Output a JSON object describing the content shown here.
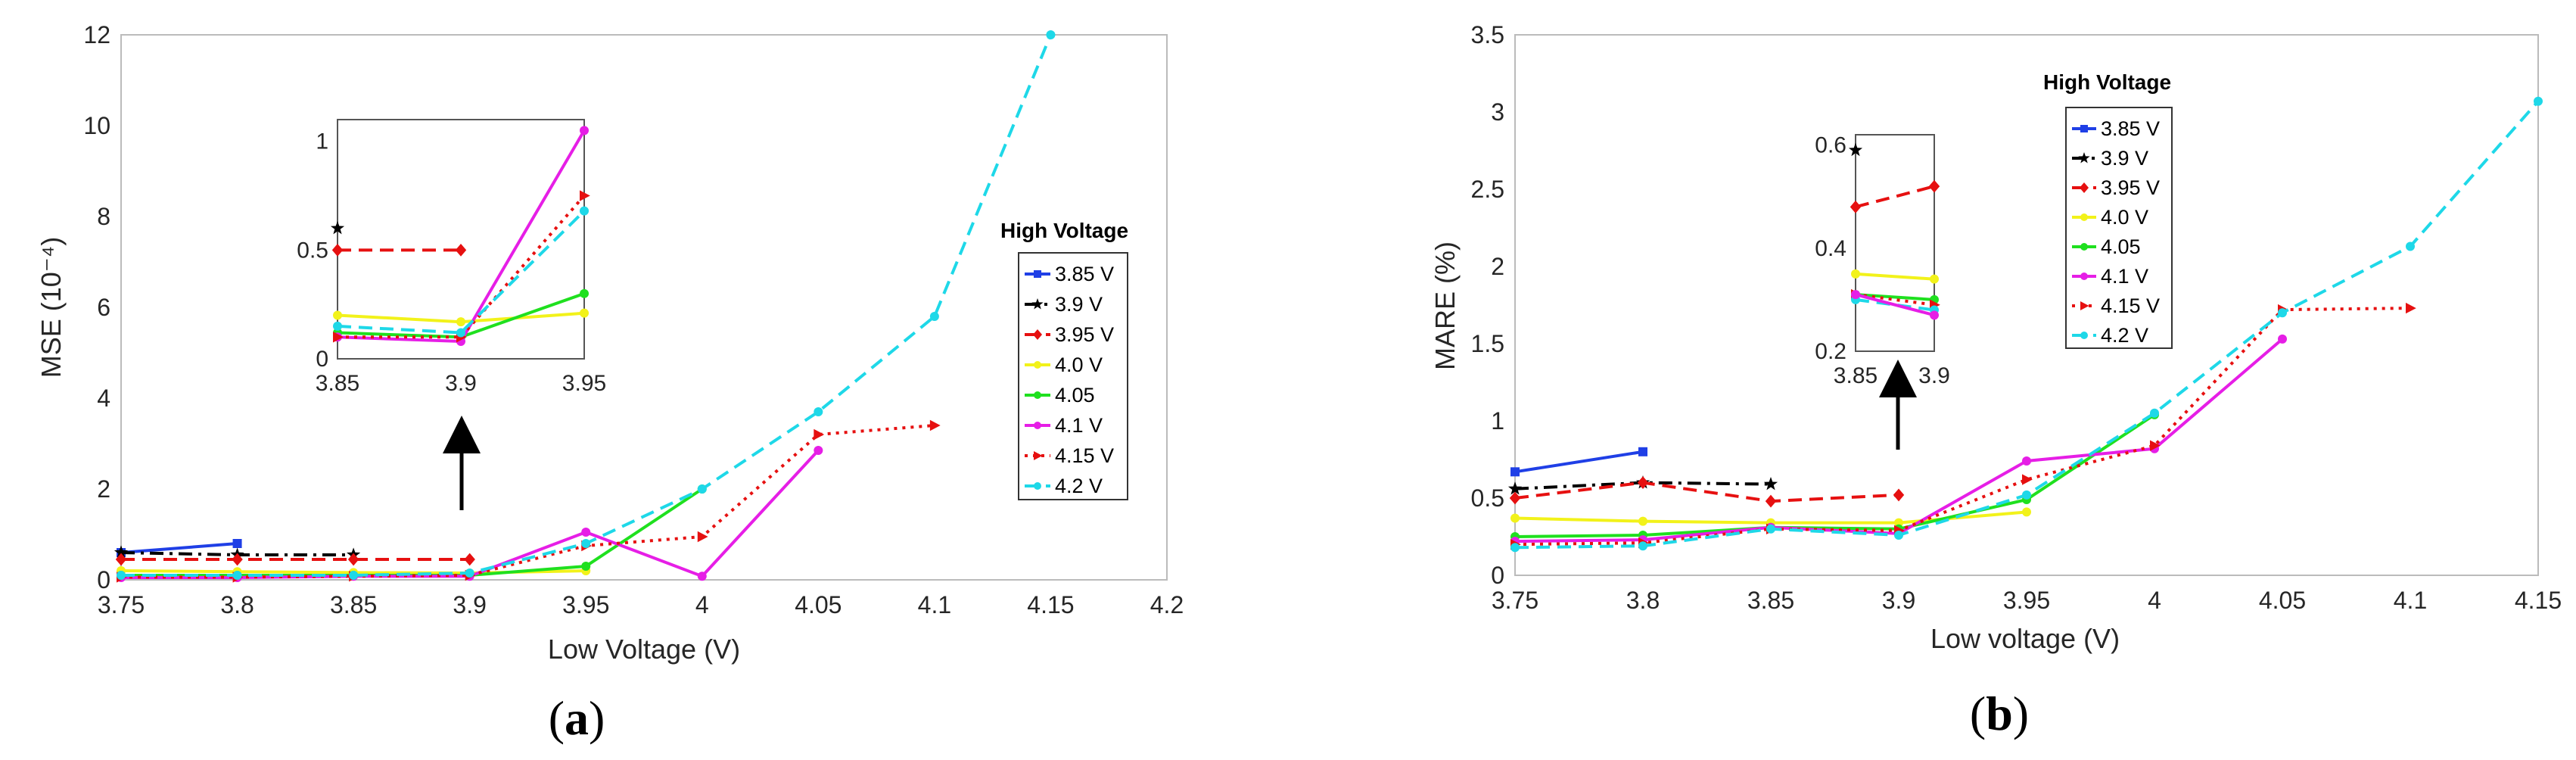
{
  "chart_data": [
    {
      "type": "line",
      "caption": "(a)",
      "caption_letter": "a",
      "title": "",
      "xlabel": "Low Voltage (V)",
      "ylabel": "MSE (10⁻⁴)",
      "xlim": [
        3.75,
        4.2
      ],
      "ylim": [
        0,
        12
      ],
      "xticks": [
        "3.75",
        "3.8",
        "3.85",
        "3.9",
        "3.95",
        "4",
        "4.05",
        "4.1",
        "4.15",
        "4.2"
      ],
      "yticks": [
        "0",
        "2",
        "4",
        "6",
        "8",
        "10",
        "12"
      ],
      "legend_title": "High Voltage",
      "legend_location": "right",
      "series": [
        {
          "name": "3.85 V",
          "color": "#1f3fe6",
          "dash": "solid",
          "marker": "square",
          "x": [
            3.75,
            3.8
          ],
          "y": [
            0.6,
            0.8
          ]
        },
        {
          "name": "3.9 V",
          "color": "#000000",
          "dash": "dashdot",
          "marker": "star",
          "x": [
            3.75,
            3.8,
            3.85
          ],
          "y": [
            0.6,
            0.55,
            0.55
          ]
        },
        {
          "name": "3.95 V",
          "color": "#e61010",
          "dash": "dashed",
          "marker": "diamond",
          "x": [
            3.75,
            3.8,
            3.85,
            3.9
          ],
          "y": [
            0.45,
            0.45,
            0.45,
            0.45
          ]
        },
        {
          "name": "4.0 V",
          "color": "#f2f21a",
          "dash": "solid",
          "marker": "circle",
          "x": [
            3.75,
            3.8,
            3.85,
            3.9,
            3.95
          ],
          "y": [
            0.2,
            0.18,
            0.16,
            0.15,
            0.2
          ]
        },
        {
          "name": "4.05",
          "color": "#1fe01f",
          "dash": "solid",
          "marker": "circle",
          "x": [
            3.75,
            3.8,
            3.85,
            3.9,
            3.95,
            4.0
          ],
          "y": [
            0.1,
            0.1,
            0.1,
            0.1,
            0.3,
            2.0
          ]
        },
        {
          "name": "4.1 V",
          "color": "#e61ee6",
          "dash": "solid",
          "marker": "circle",
          "x": [
            3.75,
            3.8,
            3.85,
            3.9,
            3.95,
            4.0,
            4.05
          ],
          "y": [
            0.05,
            0.05,
            0.08,
            0.08,
            1.05,
            0.08,
            2.85
          ]
        },
        {
          "name": "4.15 V",
          "color": "#e61010",
          "dash": "dotted",
          "marker": "triangle-right",
          "x": [
            3.75,
            3.8,
            3.85,
            3.9,
            3.95,
            4.0,
            4.05,
            4.1
          ],
          "y": [
            0.06,
            0.06,
            0.08,
            0.1,
            0.75,
            0.95,
            3.2,
            3.4
          ]
        },
        {
          "name": "4.2 V",
          "color": "#1ed8e8",
          "dash": "dashed",
          "marker": "circle",
          "x": [
            3.75,
            3.8,
            3.85,
            3.9,
            3.95,
            4.0,
            4.05,
            4.1,
            4.15
          ],
          "y": [
            0.1,
            0.1,
            0.1,
            0.15,
            0.8,
            2.0,
            3.7,
            5.8,
            12.0
          ]
        }
      ],
      "inset": {
        "xlim": [
          3.85,
          3.95
        ],
        "ylim": [
          0,
          1.1
        ],
        "xticks": [
          "3.85",
          "3.9",
          "3.95"
        ],
        "yticks": [
          "0",
          "0.5",
          "1"
        ],
        "series": [
          {
            "name": "3.9 V",
            "x": [
              3.85
            ],
            "y": [
              0.6
            ]
          },
          {
            "name": "3.95 V",
            "x": [
              3.85,
              3.9
            ],
            "y": [
              0.5,
              0.5
            ]
          },
          {
            "name": "4.0 V",
            "x": [
              3.85,
              3.9,
              3.95
            ],
            "y": [
              0.2,
              0.17,
              0.21
            ]
          },
          {
            "name": "4.05",
            "x": [
              3.85,
              3.9,
              3.95
            ],
            "y": [
              0.12,
              0.1,
              0.3
            ]
          },
          {
            "name": "4.1 V",
            "x": [
              3.85,
              3.9,
              3.95
            ],
            "y": [
              0.1,
              0.08,
              1.05
            ]
          },
          {
            "name": "4.15 V",
            "x": [
              3.85,
              3.9,
              3.95
            ],
            "y": [
              0.1,
              0.1,
              0.75
            ]
          },
          {
            "name": "4.2 V",
            "x": [
              3.85,
              3.9,
              3.95
            ],
            "y": [
              0.15,
              0.12,
              0.68
            ]
          }
        ]
      }
    },
    {
      "type": "line",
      "caption": "(b)",
      "caption_letter": "b",
      "title": "",
      "xlabel": "Low voltage (V)",
      "ylabel": "MARE (%)",
      "xlim": [
        3.75,
        4.15
      ],
      "ylim": [
        0,
        3.5
      ],
      "xticks": [
        "3.75",
        "3.8",
        "3.85",
        "3.9",
        "3.95",
        "4",
        "4.05",
        "4.1",
        "4.15"
      ],
      "yticks": [
        "0",
        "0.5",
        "1",
        "1.5",
        "2",
        "2.5",
        "3",
        "3.5"
      ],
      "legend_title": "High Voltage",
      "legend_location": "top-right",
      "series": [
        {
          "name": "3.85 V",
          "color": "#1f3fe6",
          "dash": "solid",
          "marker": "square",
          "x": [
            3.75,
            3.8
          ],
          "y": [
            0.67,
            0.8
          ]
        },
        {
          "name": "3.9 V",
          "color": "#000000",
          "dash": "dashdot",
          "marker": "star",
          "x": [
            3.75,
            3.8,
            3.85
          ],
          "y": [
            0.56,
            0.6,
            0.59
          ]
        },
        {
          "name": "3.95 V",
          "color": "#e61010",
          "dash": "dashed",
          "marker": "diamond",
          "x": [
            3.75,
            3.8,
            3.85,
            3.9
          ],
          "y": [
            0.5,
            0.6,
            0.48,
            0.52
          ]
        },
        {
          "name": "4.0 V",
          "color": "#f2f21a",
          "dash": "solid",
          "marker": "circle",
          "x": [
            3.75,
            3.8,
            3.85,
            3.9,
            3.95
          ],
          "y": [
            0.37,
            0.35,
            0.34,
            0.34,
            0.41
          ]
        },
        {
          "name": "4.05",
          "color": "#1fe01f",
          "dash": "solid",
          "marker": "circle",
          "x": [
            3.75,
            3.8,
            3.85,
            3.9,
            3.95,
            4.0
          ],
          "y": [
            0.25,
            0.26,
            0.31,
            0.3,
            0.49,
            1.04
          ]
        },
        {
          "name": "4.1 V",
          "color": "#e61ee6",
          "dash": "solid",
          "marker": "circle",
          "x": [
            3.75,
            3.8,
            3.85,
            3.9,
            3.95,
            4.0,
            4.05
          ],
          "y": [
            0.22,
            0.23,
            0.31,
            0.27,
            0.74,
            0.82,
            1.53
          ]
        },
        {
          "name": "4.15 V",
          "color": "#e61010",
          "dash": "dotted",
          "marker": "triangle-right",
          "x": [
            3.75,
            3.8,
            3.85,
            3.9,
            3.95,
            4.0,
            4.05,
            4.1
          ],
          "y": [
            0.2,
            0.21,
            0.3,
            0.29,
            0.62,
            0.84,
            1.72,
            1.73
          ]
        },
        {
          "name": "4.2 V",
          "color": "#1ed8e8",
          "dash": "dashed",
          "marker": "circle",
          "x": [
            3.75,
            3.8,
            3.85,
            3.9,
            3.95,
            4.0,
            4.05,
            4.1,
            4.15
          ],
          "y": [
            0.18,
            0.19,
            0.3,
            0.26,
            0.52,
            1.05,
            1.7,
            2.13,
            3.07
          ]
        }
      ],
      "inset": {
        "xlim": [
          3.85,
          3.9
        ],
        "ylim": [
          0.2,
          0.62
        ],
        "xticks": [
          "3.85",
          "3.9"
        ],
        "yticks": [
          "0.2",
          "0.4",
          "0.6"
        ],
        "series": [
          {
            "name": "3.9 V",
            "x": [
              3.85
            ],
            "y": [
              0.59
            ]
          },
          {
            "name": "3.95 V",
            "x": [
              3.85,
              3.9
            ],
            "y": [
              0.48,
              0.52
            ]
          },
          {
            "name": "4.0 V",
            "x": [
              3.85,
              3.9
            ],
            "y": [
              0.35,
              0.34
            ]
          },
          {
            "name": "4.05",
            "x": [
              3.85,
              3.9
            ],
            "y": [
              0.31,
              0.3
            ]
          },
          {
            "name": "4.15 V",
            "x": [
              3.85,
              3.9
            ],
            "y": [
              0.31,
              0.29
            ]
          },
          {
            "name": "4.2 V",
            "x": [
              3.85,
              3.9
            ],
            "y": [
              0.3,
              0.28
            ]
          },
          {
            "name": "4.1 V",
            "x": [
              3.85,
              3.9
            ],
            "y": [
              0.31,
              0.27
            ]
          }
        ]
      }
    }
  ]
}
